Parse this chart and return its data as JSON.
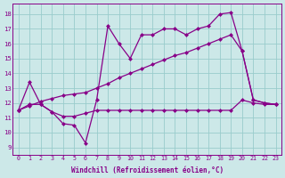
{
  "bg_color": "#cce8e8",
  "grid_color": "#99cccc",
  "line_color": "#880088",
  "markersize": 2.5,
  "linewidth": 0.9,
  "xlabel": "Windchill (Refroidissement éolien,°C)",
  "xlim": [
    -0.5,
    23.5
  ],
  "ylim": [
    8.5,
    18.7
  ],
  "xticks": [
    0,
    1,
    2,
    3,
    4,
    5,
    6,
    7,
    8,
    9,
    10,
    11,
    12,
    13,
    14,
    15,
    16,
    17,
    18,
    19,
    20,
    21,
    22,
    23
  ],
  "yticks": [
    9,
    10,
    11,
    12,
    13,
    14,
    15,
    16,
    17,
    18
  ],
  "line1_x": [
    0,
    1,
    2,
    3,
    4,
    5,
    6,
    7,
    8,
    9,
    10,
    11,
    12,
    13,
    14,
    15,
    16,
    17,
    18,
    19,
    20,
    21,
    22,
    23
  ],
  "line1_y": [
    11.5,
    13.4,
    11.9,
    11.4,
    10.6,
    10.5,
    9.3,
    12.2,
    17.2,
    16.0,
    15.0,
    16.6,
    16.6,
    17.0,
    17.0,
    16.6,
    17.0,
    17.2,
    18.0,
    18.1,
    15.5,
    12.2,
    12.0,
    11.9
  ],
  "line2_x": [
    0,
    1,
    2,
    3,
    4,
    5,
    6,
    7,
    8,
    9,
    10,
    11,
    12,
    13,
    14,
    15,
    16,
    17,
    18,
    19,
    20,
    21,
    22,
    23
  ],
  "line2_y": [
    11.5,
    11.8,
    12.1,
    12.3,
    12.5,
    12.6,
    12.7,
    13.0,
    13.3,
    13.7,
    14.0,
    14.3,
    14.6,
    14.9,
    15.2,
    15.4,
    15.7,
    16.0,
    16.3,
    16.6,
    15.5,
    12.2,
    12.0,
    11.9
  ],
  "line3_x": [
    0,
    1,
    2,
    3,
    4,
    5,
    6,
    7,
    8,
    9,
    10,
    11,
    12,
    13,
    14,
    15,
    16,
    17,
    18,
    19,
    20,
    21,
    22,
    23
  ],
  "line3_y": [
    11.5,
    11.9,
    11.9,
    11.4,
    11.1,
    11.1,
    11.3,
    11.5,
    11.5,
    11.5,
    11.5,
    11.5,
    11.5,
    11.5,
    11.5,
    11.5,
    11.5,
    11.5,
    11.5,
    11.5,
    12.2,
    12.0,
    11.9,
    11.9
  ]
}
